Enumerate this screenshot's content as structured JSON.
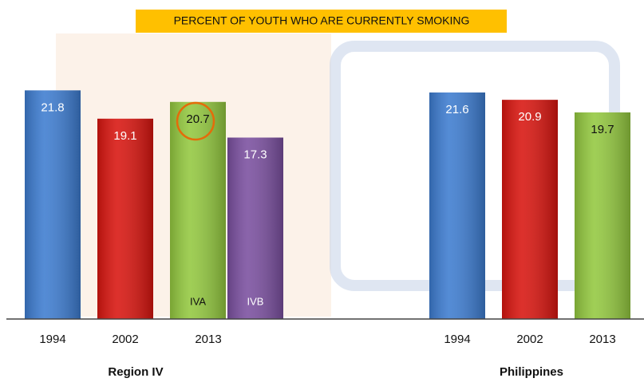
{
  "chart_data": {
    "type": "bar",
    "title": "PERCENT OF YOUTH WHO ARE CURRENTLY SMOKING",
    "ylim": [
      0,
      30
    ],
    "groups": [
      {
        "name": "Region IV",
        "categories": [
          {
            "label": "1994",
            "bars": [
              {
                "value": 21.8,
                "color": "#3d7cd0"
              }
            ]
          },
          {
            "label": "2002",
            "bars": [
              {
                "value": 19.1,
                "color": "#d8150f"
              }
            ]
          },
          {
            "label": "2013",
            "bars": [
              {
                "label": "IVA",
                "value": 20.7,
                "color": "#93c83f"
              },
              {
                "label": "IVB",
                "value": 17.3,
                "color": "#7a4f9f"
              }
            ]
          }
        ]
      },
      {
        "name": "Philippines",
        "categories": [
          {
            "label": "1994",
            "bars": [
              {
                "value": 21.6,
                "color": "#3d7cd0"
              }
            ]
          },
          {
            "label": "2002",
            "bars": [
              {
                "value": 20.9,
                "color": "#d8150f"
              }
            ]
          },
          {
            "label": "2013",
            "bars": [
              {
                "value": 19.7,
                "color": "#93c83f"
              }
            ]
          }
        ]
      }
    ]
  }
}
